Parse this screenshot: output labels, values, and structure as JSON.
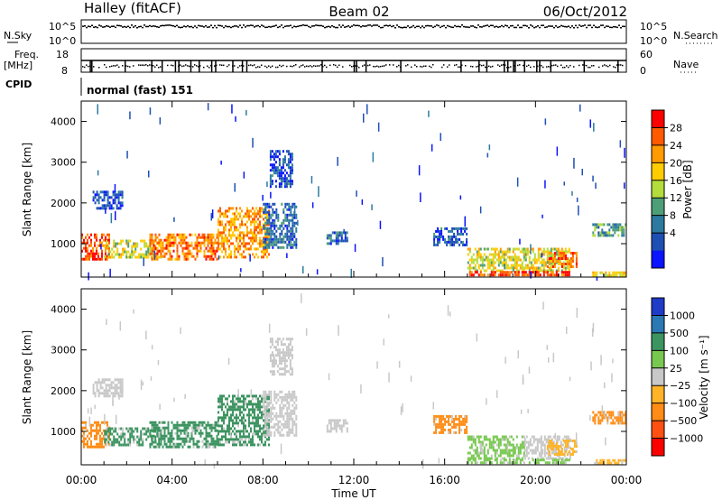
{
  "header": {
    "station": "Halley (fitACF)",
    "beam": "Beam 02",
    "date": "06/Oct/2012"
  },
  "strip_labels": {
    "nsky": "N.Sky",
    "nsearch": "N.Search",
    "freq_line1": "Freq.",
    "freq_line2": "[MHz]",
    "nave": "Nave",
    "cpid": "CPID",
    "cpid_value": "normal (fast) 151",
    "noise_ticks_left": [
      "10^5",
      "10^0"
    ],
    "noise_ticks_right": [
      "10^5",
      "10^0"
    ],
    "freq_ticks": [
      "18",
      "8"
    ],
    "nave_ticks": [
      "60",
      "0"
    ]
  },
  "chart_data": [
    {
      "type": "heatmap",
      "name": "power-panel",
      "ylabel": "Slant Range [km]",
      "yticks": [
        1000,
        2000,
        3000,
        4000
      ],
      "ylim": [
        180,
        4500
      ],
      "xlim": [
        0,
        24
      ],
      "colorbar_label": "Power [dB]",
      "colorbar_ticks": [
        "28",
        "24",
        "20",
        "16",
        "12",
        "8",
        "4"
      ],
      "colorbar_colors": [
        "#ff0000",
        "#ff5a00",
        "#ff9a00",
        "#ffcc00",
        "#b4dc3c",
        "#4e9e78",
        "#2c7aa0",
        "#1e50b4",
        "#0a14ff"
      ],
      "regions": [
        {
          "t0": 0.0,
          "t1": 1.2,
          "r0": 600,
          "r1": 1250,
          "level": 0.9
        },
        {
          "t0": 1.0,
          "t1": 3.5,
          "r0": 650,
          "r1": 1100,
          "level": 0.55
        },
        {
          "t0": 3.0,
          "t1": 6.0,
          "r0": 650,
          "r1": 1250,
          "level": 0.8
        },
        {
          "t0": 6.0,
          "t1": 8.3,
          "r0": 700,
          "r1": 1900,
          "level": 0.75
        },
        {
          "t0": 8.0,
          "t1": 9.5,
          "r0": 900,
          "r1": 2000,
          "level": 0.2
        },
        {
          "t0": 0.5,
          "t1": 1.8,
          "r0": 1900,
          "r1": 2300,
          "level": 0.1
        },
        {
          "t0": 8.3,
          "t1": 9.3,
          "r0": 2400,
          "r1": 3300,
          "level": 0.15
        },
        {
          "t0": 10.8,
          "t1": 11.7,
          "r0": 1000,
          "r1": 1300,
          "level": 0.2
        },
        {
          "t0": 15.5,
          "t1": 17.0,
          "r0": 1000,
          "r1": 1400,
          "level": 0.15
        },
        {
          "t0": 17.0,
          "t1": 21.5,
          "r0": 350,
          "r1": 900,
          "level": 0.55
        },
        {
          "t0": 17.0,
          "t1": 21.5,
          "r0": 220,
          "r1": 330,
          "level": 0.9
        },
        {
          "t0": 20.5,
          "t1": 21.8,
          "r0": 450,
          "r1": 800,
          "level": 0.85
        },
        {
          "t0": 22.5,
          "t1": 24.0,
          "r0": 1200,
          "r1": 1500,
          "level": 0.35
        },
        {
          "t0": 22.5,
          "t1": 24.0,
          "r0": 200,
          "r1": 320,
          "level": 0.6
        }
      ]
    },
    {
      "type": "heatmap",
      "name": "velocity-panel",
      "ylabel": "Slant Range [km]",
      "yticks": [
        1000,
        2000,
        3000,
        4000
      ],
      "ylim": [
        180,
        4500
      ],
      "xlim": [
        0,
        24
      ],
      "xticks": [
        "00:00",
        "04:00",
        "08:00",
        "12:00",
        "16:00",
        "20:00",
        "00:00"
      ],
      "xlabel": "Time UT",
      "colorbar_label": "Velocity [m s⁻¹]",
      "colorbar_ticks": [
        "1000",
        "500",
        "100",
        "25",
        "−25",
        "−100",
        "−500",
        "−1000"
      ],
      "colorbar_colors": [
        "#1e3cc8",
        "#2a78b4",
        "#3c9460",
        "#78c850",
        "#c8c8c8",
        "#ffb428",
        "#ff8c14",
        "#ff5014",
        "#ff0000"
      ],
      "regions": [
        {
          "t0": 0.0,
          "t1": 1.2,
          "r0": 600,
          "r1": 1250,
          "color": "#ff8c14"
        },
        {
          "t0": 1.0,
          "t1": 3.5,
          "r0": 650,
          "r1": 1100,
          "color": "#3c9460"
        },
        {
          "t0": 3.0,
          "t1": 6.0,
          "r0": 650,
          "r1": 1250,
          "color": "#3c9460"
        },
        {
          "t0": 6.0,
          "t1": 8.3,
          "r0": 700,
          "r1": 1900,
          "color": "#3c9460"
        },
        {
          "t0": 8.0,
          "t1": 9.5,
          "r0": 900,
          "r1": 2000,
          "color": "#c8c8c8"
        },
        {
          "t0": 0.5,
          "t1": 1.8,
          "r0": 1900,
          "r1": 2300,
          "color": "#c8c8c8"
        },
        {
          "t0": 8.3,
          "t1": 9.3,
          "r0": 2400,
          "r1": 3300,
          "color": "#c8c8c8"
        },
        {
          "t0": 10.8,
          "t1": 11.7,
          "r0": 1000,
          "r1": 1300,
          "color": "#c8c8c8"
        },
        {
          "t0": 15.5,
          "t1": 17.0,
          "r0": 1000,
          "r1": 1400,
          "color": "#ff8c14"
        },
        {
          "t0": 17.0,
          "t1": 19.5,
          "r0": 350,
          "r1": 900,
          "color": "#78c850"
        },
        {
          "t0": 19.5,
          "t1": 21.5,
          "r0": 350,
          "r1": 900,
          "color": "#c8c8c8"
        },
        {
          "t0": 20.5,
          "t1": 21.8,
          "r0": 450,
          "r1": 800,
          "color": "#ffb428"
        },
        {
          "t0": 17.0,
          "t1": 21.5,
          "r0": 220,
          "r1": 330,
          "color": "#78c850"
        },
        {
          "t0": 22.5,
          "t1": 24.0,
          "r0": 1200,
          "r1": 1500,
          "color": "#ff8c14"
        },
        {
          "t0": 22.5,
          "t1": 24.0,
          "r0": 200,
          "r1": 320,
          "color": "#ffb428"
        }
      ]
    }
  ]
}
